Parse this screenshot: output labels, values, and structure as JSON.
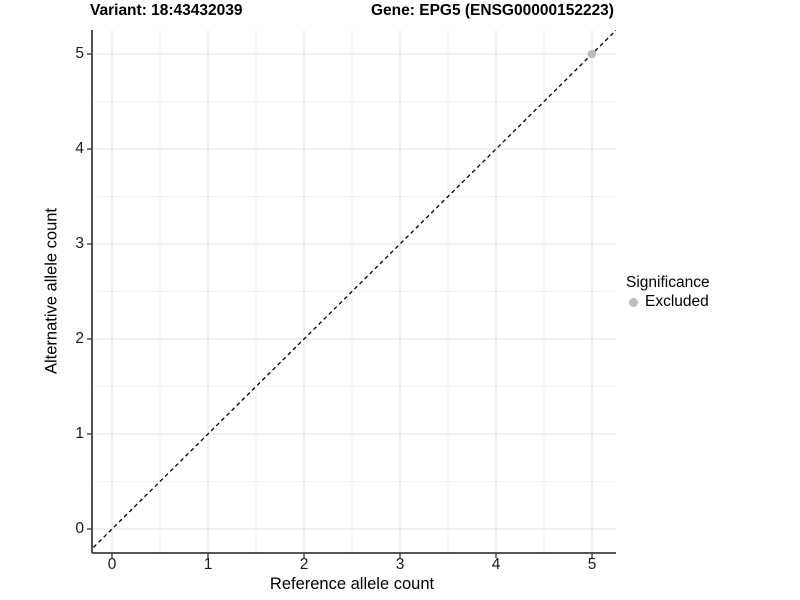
{
  "chart_data": {
    "type": "scatter",
    "titles": [
      "Variant: 18:43432039",
      "Gene: EPG5 (ENSG00000152223)"
    ],
    "xlabel": "Reference allele count",
    "ylabel": "Alternative allele count",
    "x_ticks": [
      0,
      1,
      2,
      3,
      4,
      5
    ],
    "y_ticks": [
      0,
      1,
      2,
      3,
      4,
      5
    ],
    "x_minor_ticks": [
      0.5,
      1.5,
      2.5,
      3.5,
      4.5
    ],
    "y_minor_ticks": [
      0.5,
      1.5,
      2.5,
      3.5,
      4.5
    ],
    "xlim": [
      -0.25,
      5.25
    ],
    "ylim": [
      -0.25,
      5.25
    ],
    "grid": "major and minor, light gray on white",
    "reference_line": {
      "type": "identity y=x",
      "style": "dashed",
      "color": "#000000",
      "from": -0.3,
      "to": 5.45
    },
    "series": [
      {
        "name": "Excluded",
        "color": "#bdbdbd",
        "points": [
          {
            "x": 5,
            "y": 5
          }
        ]
      }
    ],
    "legend": {
      "title": "Significance",
      "position": "right",
      "items": [
        {
          "label": "Excluded",
          "color": "#bdbdbd"
        }
      ]
    },
    "colors": {
      "background": "#ffffff",
      "grid_major": "#e4e4e4",
      "grid_minor": "#f2f2f2",
      "axis_line": "#3f3f3f",
      "tick_mark": "#333333",
      "text": "#000000",
      "point": "#bdbdbd"
    }
  }
}
